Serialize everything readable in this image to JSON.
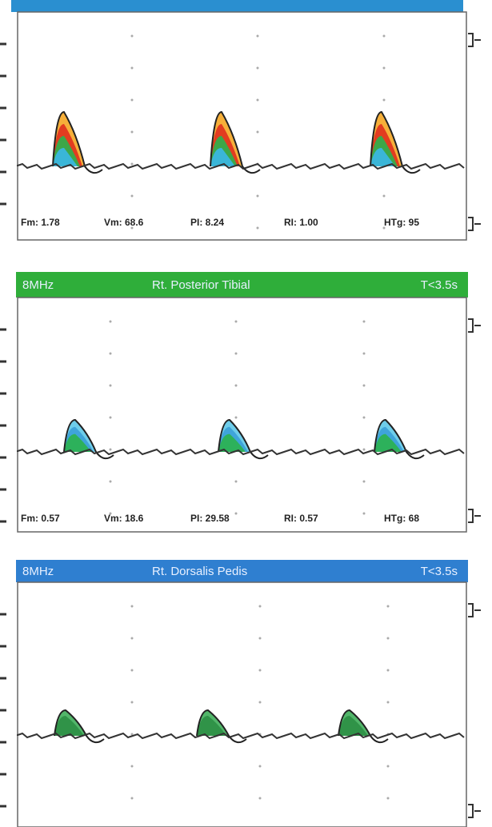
{
  "panels": [
    {
      "measurements": [
        "Fm: 1.78",
        "Vm: 68.6",
        "PI: 8.24",
        "RI: 1.00",
        "HTg: 95"
      ]
    },
    {
      "header": {
        "frequency": "8MHz",
        "vessel": "Rt. Posterior Tibial",
        "time": "T<3.5s"
      },
      "measurements": [
        "Fm: 0.57",
        "Vm: 18.6",
        "PI: 29.58",
        "RI: 0.57",
        "HTg: 68"
      ]
    },
    {
      "header": {
        "frequency": "8MHz",
        "vessel": "Rt. Dorsalis Pedis",
        "time": "T<3.5s"
      }
    }
  ]
}
